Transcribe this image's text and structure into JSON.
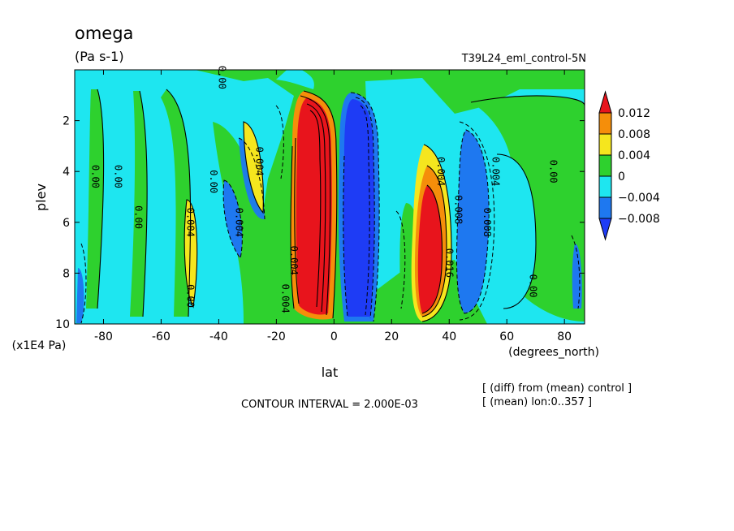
{
  "chart_data": {
    "type": "heatmap",
    "title": "omega",
    "units": "(Pa s-1)",
    "experiment": "T39L24_eml_control-5N",
    "xlabel": "lat",
    "xunits": "(degrees_north)",
    "ylabel": "plev",
    "yunits": "(x1E4 Pa)",
    "xlim": [
      -90,
      87
    ],
    "ylim": [
      10,
      0
    ],
    "x_ticks": [
      -80,
      -60,
      -40,
      -20,
      0,
      20,
      40,
      60,
      80
    ],
    "y_ticks": [
      2,
      4,
      6,
      8,
      10
    ],
    "contour_interval": "CONTOUR INTERVAL = 2.000E-03",
    "notes": [
      "[ (diff) from (mean) control ]",
      "[ (mean) lon:0..357 ]"
    ],
    "colorbar": {
      "labels": [
        "0.012",
        "0.008",
        "0.004",
        "0",
        "−0.004",
        "−0.008"
      ],
      "colors": [
        "#e8141c",
        "#f58e0a",
        "#f5e61e",
        "#2ed12e",
        "#1ee6f0",
        "#1e78f0",
        "#1e3cf5"
      ]
    },
    "features": [
      {
        "lat": -4,
        "plev_top": 1.2,
        "plev_bottom": 9.9,
        "value": 0.012,
        "sign": "positive"
      },
      {
        "lat": 10,
        "plev_top": 1.1,
        "plev_bottom": 10,
        "value": -0.012,
        "sign": "negative"
      },
      {
        "lat": 37,
        "plev_top": 3.3,
        "plev_bottom": 9.6,
        "value": 0.016,
        "sign": "positive"
      },
      {
        "lat": 50,
        "plev_top": 2.6,
        "plev_bottom": 9.4,
        "value": -0.008,
        "sign": "negative"
      },
      {
        "lat": -28,
        "plev_top": 2.4,
        "plev_bottom": 5.5,
        "value": 0.004,
        "sign": "positive"
      },
      {
        "lat": -52,
        "plev_top": 5.0,
        "plev_bottom": 9.2,
        "value": 0.004,
        "sign": "positive"
      },
      {
        "lat": -36,
        "plev_top": 4.2,
        "plev_bottom": 8.5,
        "value": -0.004,
        "sign": "negative"
      },
      {
        "lat": -65,
        "plev_top": 1.8,
        "plev_bottom": 8.6,
        "value": -0.002,
        "sign": "negative"
      },
      {
        "lat": 68,
        "plev_top": 1.6,
        "plev_bottom": 9.0,
        "value": -0.002,
        "sign": "negative"
      }
    ],
    "contour_labels": [
      {
        "text": "0.00",
        "lat": -84,
        "plev": 4.2
      },
      {
        "text": "0.00",
        "lat": -76,
        "plev": 4.2
      },
      {
        "text": "0.00",
        "lat": -69,
        "plev": 5.8
      },
      {
        "text": "0.004",
        "lat": -51,
        "plev": 6.0
      },
      {
        "text": "0.00",
        "lat": -43,
        "plev": 4.4
      },
      {
        "text": "0.004",
        "lat": -34,
        "plev": 6.0
      },
      {
        "text": "0.004",
        "lat": -27,
        "plev": 3.6
      },
      {
        "text": "0.00",
        "lat": -51,
        "plev": 8.9
      },
      {
        "text": "0.004",
        "lat": -18,
        "plev": 9.0
      },
      {
        "text": "0.004",
        "lat": -15,
        "plev": 7.5
      },
      {
        "text": "0.00",
        "lat": -40,
        "plev": 0.3
      },
      {
        "text": "0.004",
        "lat": 36,
        "plev": 4.0
      },
      {
        "text": "0.008",
        "lat": 42,
        "plev": 5.5
      },
      {
        "text": "0.016",
        "lat": 39,
        "plev": 7.6
      },
      {
        "text": "0.004",
        "lat": 55,
        "plev": 4.0
      },
      {
        "text": "0.008",
        "lat": 52,
        "plev": 6.0
      },
      {
        "text": "0.00",
        "lat": 75,
        "plev": 4.0
      },
      {
        "text": "0.00",
        "lat": 68,
        "plev": 8.5
      }
    ]
  }
}
